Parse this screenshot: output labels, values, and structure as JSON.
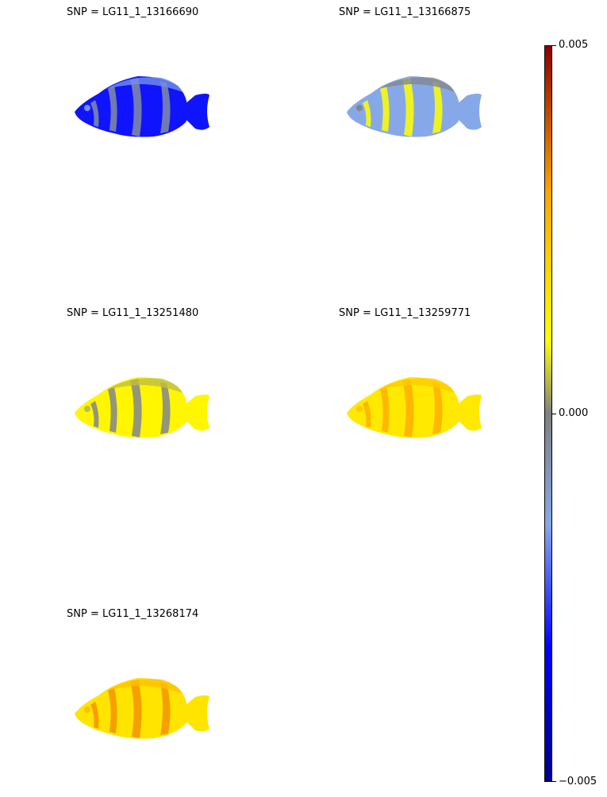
{
  "chart_data": {
    "type": "heatmap",
    "panels": [
      {
        "title": "SNP = LG11_1_13166690",
        "dominant_value": -0.003,
        "secondary_value": -0.0005
      },
      {
        "title": "SNP = LG11_1_13166875",
        "dominant_value": -0.0015,
        "secondary_value": 0.001
      },
      {
        "title": "SNP = LG11_1_13251480",
        "dominant_value": 0.0012,
        "secondary_value": -0.0002
      },
      {
        "title": "SNP = LG11_1_13259771",
        "dominant_value": 0.0015,
        "secondary_value": 0.0028
      },
      {
        "title": "SNP = LG11_1_13268174",
        "dominant_value": 0.0016,
        "secondary_value": 0.0032
      }
    ],
    "colorbar": {
      "range": [
        -0.005,
        0.005
      ],
      "ticks": [
        "0.005",
        "0.000",
        "−0.005"
      ],
      "tick_values": [
        0.005,
        0.0,
        -0.005
      ],
      "colors": {
        "min": "#00008b",
        "low": "#0000ff",
        "mid_low": "#87a8e8",
        "mid": "#808080",
        "mid_high": "#ffff00",
        "high": "#ffa500",
        "max": "#8b0000"
      }
    }
  }
}
